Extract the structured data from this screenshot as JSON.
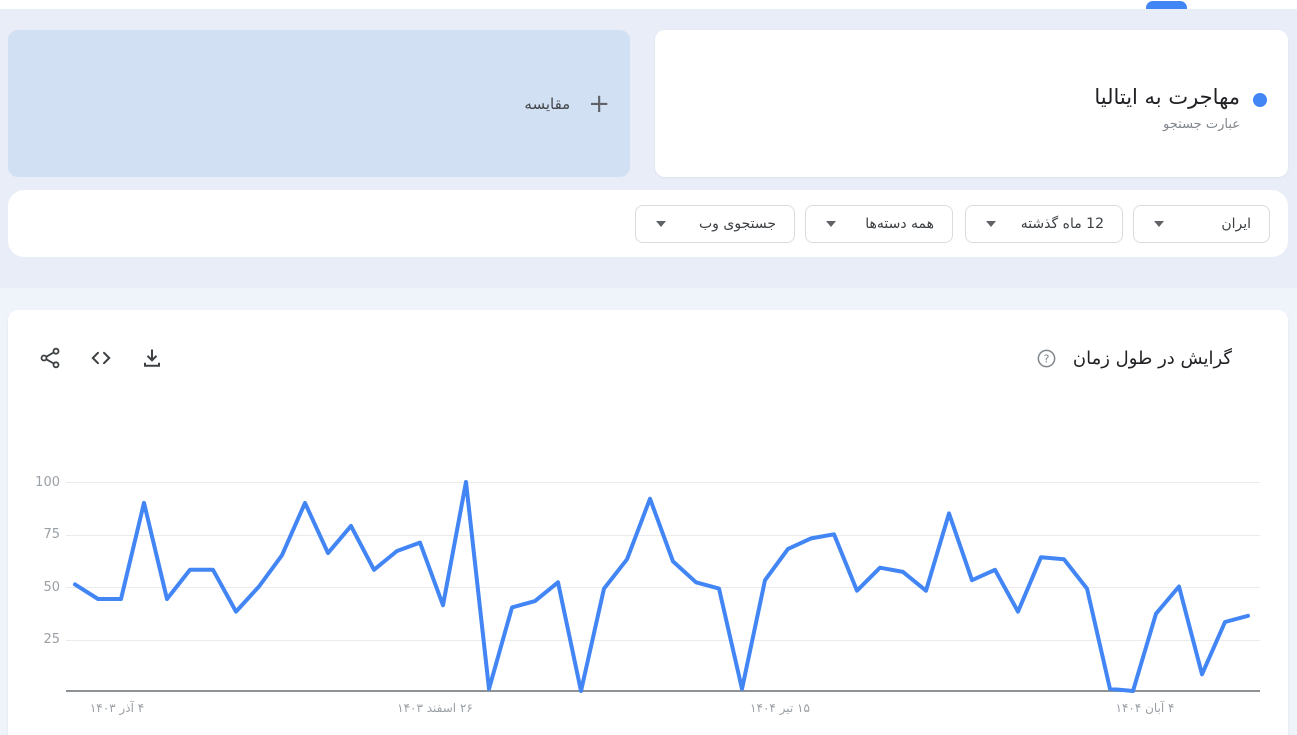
{
  "header": {
    "active_tab_indicator_color": "#4285f4"
  },
  "compare_card": {
    "label": "مقایسه",
    "plus": "+",
    "background": "#d2e0f4"
  },
  "term_card": {
    "title": "مهاجرت به ایتالیا",
    "subtitle": "عبارت جستجو",
    "dot_color": "#4285f4"
  },
  "filters": {
    "region": "ایران",
    "time": "12 ماه گذشته",
    "category": "همه دسته‌ها",
    "search_type": "جستجوی وب"
  },
  "chart_section": {
    "title": "گرایش در طول زمان",
    "icons": [
      "share-icon",
      "embed-code-icon",
      "download-icon",
      "help-icon"
    ]
  },
  "chart_data": {
    "type": "line",
    "title": "گرایش در طول زمان",
    "series": [
      {
        "name": "مهاجرت به ایتالیا",
        "values": [
          51,
          44,
          44,
          90,
          44,
          58,
          58,
          38,
          50,
          65,
          90,
          66,
          79,
          58,
          67,
          71,
          41,
          100,
          1,
          40,
          43,
          52,
          0,
          49,
          63,
          92,
          62,
          52,
          49,
          1,
          53,
          68,
          73,
          75,
          48,
          59,
          57,
          48,
          85,
          53,
          58,
          38,
          64,
          63,
          49,
          1,
          0,
          37,
          50,
          8,
          33,
          36
        ]
      }
    ],
    "x_unit": "week",
    "x_tick_labels": [
      "۴ آذر ۱۴۰۳",
      "۲۶ اسفند ۱۴۰۳",
      "۱۵ تیر ۱۴۰۴",
      "۴ آبان ۱۴۰۴"
    ],
    "y_tick_labels": [
      "100",
      "75",
      "50",
      "25"
    ],
    "ylim": [
      0,
      100
    ],
    "grid": true,
    "legend": false,
    "line_color": "#4285f4"
  }
}
